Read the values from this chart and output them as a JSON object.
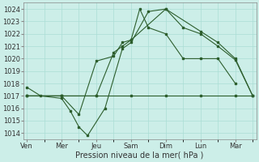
{
  "xlabel": "Pression niveau de la mer( hPa )",
  "background_color": "#cceee8",
  "grid_color": "#aaddd5",
  "line_color": "#2d5e2d",
  "ylim": [
    1013.5,
    1024.5
  ],
  "yticks": [
    1014,
    1015,
    1016,
    1017,
    1018,
    1019,
    1020,
    1021,
    1022,
    1023,
    1024
  ],
  "xtick_labels": [
    "Ven",
    "Mer",
    "Jeu",
    "Sam",
    "Dim",
    "Lun",
    "Mar"
  ],
  "xtick_positions": [
    0,
    2,
    4,
    6,
    8,
    10,
    12
  ],
  "xlim": [
    -0.2,
    13.2
  ],
  "lines": [
    {
      "x": [
        0,
        0.8,
        2,
        2.5,
        3,
        3.5,
        4.5,
        5.5,
        6,
        7,
        8,
        9,
        10,
        11,
        12,
        13
      ],
      "y": [
        1017.7,
        1017.0,
        1016.8,
        1015.8,
        1014.5,
        1013.8,
        1016.0,
        1020.8,
        1021.3,
        1023.8,
        1024.0,
        1022.5,
        1022.0,
        1021.0,
        1019.9,
        1017.0
      ]
    },
    {
      "x": [
        0,
        2,
        3,
        4,
        5,
        5.5,
        6,
        6.5,
        7,
        8,
        9,
        10,
        11,
        12
      ],
      "y": [
        1017.0,
        1017.0,
        1015.5,
        1019.8,
        1020.2,
        1021.3,
        1021.5,
        1024.0,
        1022.5,
        1022.0,
        1020.0,
        1020.0,
        1020.0,
        1018.0
      ]
    },
    {
      "x": [
        0,
        2,
        4,
        6,
        8,
        10,
        12,
        13
      ],
      "y": [
        1017.0,
        1017.0,
        1017.0,
        1017.0,
        1017.0,
        1017.0,
        1017.0,
        1017.0
      ]
    },
    {
      "x": [
        0,
        2,
        4,
        5,
        5.5,
        6,
        8,
        10,
        11,
        12,
        13
      ],
      "y": [
        1017.0,
        1017.0,
        1017.0,
        1020.5,
        1021.0,
        1021.5,
        1024.0,
        1022.2,
        1021.3,
        1020.0,
        1017.0
      ]
    }
  ]
}
